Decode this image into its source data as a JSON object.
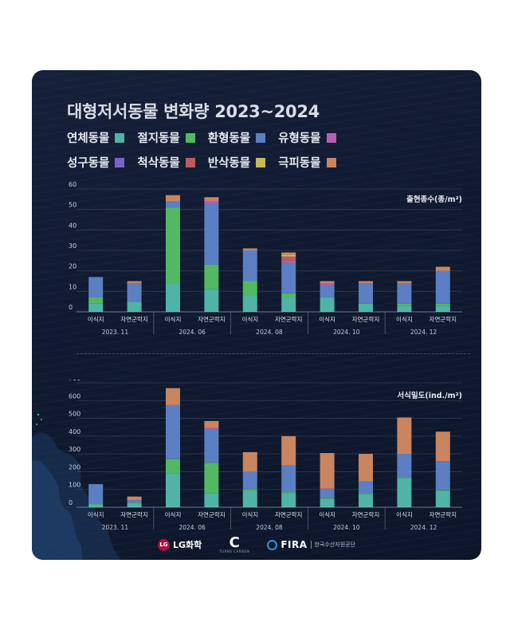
{
  "title": "대형저서동물 변화량 2023~2024",
  "colors": {
    "연체동물": "#4fb3a8",
    "절지동물": "#52b862",
    "환형동물": "#5b7fc2",
    "유형동물": "#b95db7",
    "성구동물": "#7a62c9",
    "척삭동물": "#c05a5e",
    "반삭동물": "#c8b85a",
    "극피동물": "#c98560"
  },
  "legend": [
    {
      "label": "연체동물",
      "color": "#4fb3a8"
    },
    {
      "label": "절지동물",
      "color": "#52b862"
    },
    {
      "label": "환형동물",
      "color": "#5b7fc2"
    },
    {
      "label": "유형동물",
      "color": "#b95db7"
    },
    {
      "label": "성구동물",
      "color": "#7a62c9"
    },
    {
      "label": "척삭동물",
      "color": "#c05a5e"
    },
    {
      "label": "반삭동물",
      "color": "#c8b85a"
    },
    {
      "label": "극피동물",
      "color": "#c98560"
    }
  ],
  "logos": {
    "lg": "LG화학",
    "lg_mark": "LG",
    "c_mark": "C",
    "c_sub": "TURNS CARBON",
    "fira": "FIRA",
    "fira_sub": "한국수산자원공단"
  },
  "chart_data": [
    {
      "type": "bar",
      "stacked": true,
      "title": "",
      "ylabel": "출현종수(종/m²)",
      "ylim": [
        0,
        60
      ],
      "yticks": [
        0,
        10,
        20,
        30,
        40,
        50,
        60
      ],
      "grid": true,
      "categories": [
        "이식지",
        "자연군락지",
        "이식지",
        "자연군락지",
        "이식지",
        "자연군락지",
        "이식지",
        "자연군락지",
        "이식지",
        "자연군락지"
      ],
      "groups": [
        {
          "label": "2023. 11",
          "span": [
            0,
            1
          ]
        },
        {
          "label": "2024. 06",
          "span": [
            2,
            3
          ]
        },
        {
          "label": "2024. 08",
          "span": [
            4,
            5
          ]
        },
        {
          "label": "2024. 10",
          "span": [
            6,
            7
          ]
        },
        {
          "label": "2024. 12",
          "span": [
            8,
            9
          ]
        }
      ],
      "series": [
        {
          "name": "연체동물",
          "values": [
            4,
            5,
            14,
            11,
            8,
            7,
            7,
            4,
            3,
            3
          ]
        },
        {
          "name": "절지동물",
          "values": [
            3,
            0,
            37,
            12,
            7,
            2,
            0,
            0,
            1,
            1
          ]
        },
        {
          "name": "환형동물",
          "values": [
            10,
            9,
            3,
            30,
            15,
            15,
            6,
            10,
            10,
            16
          ]
        },
        {
          "name": "유형동물",
          "values": [
            0,
            0,
            0,
            1,
            0,
            1,
            1,
            0,
            0,
            0
          ]
        },
        {
          "name": "성구동물",
          "values": [
            0,
            0,
            0,
            0,
            0,
            0,
            0,
            0,
            0,
            0
          ]
        },
        {
          "name": "척삭동물",
          "values": [
            0,
            0,
            0,
            0,
            0,
            2,
            0,
            0,
            0,
            0
          ]
        },
        {
          "name": "반삭동물",
          "values": [
            0,
            0,
            0,
            0,
            0,
            1,
            0,
            0,
            0,
            0
          ]
        },
        {
          "name": "극피동물",
          "values": [
            0,
            1,
            3,
            2,
            1,
            1,
            1,
            1,
            1,
            2
          ]
        }
      ]
    },
    {
      "type": "bar",
      "stacked": true,
      "title": "",
      "ylabel": "서식밀도(ind./m²)",
      "ylim": [
        0,
        700
      ],
      "yticks": [
        0,
        100,
        200,
        300,
        400,
        500,
        600,
        700
      ],
      "grid": true,
      "categories": [
        "이식지",
        "자연군락지",
        "이식지",
        "자연군락지",
        "이식지",
        "자연군락지",
        "이식지",
        "자연군락지",
        "이식지",
        "자연군락지"
      ],
      "groups": [
        {
          "label": "2023. 11",
          "span": [
            0,
            1
          ]
        },
        {
          "label": "2024. 06",
          "span": [
            2,
            3
          ]
        },
        {
          "label": "2024. 08",
          "span": [
            4,
            5
          ]
        },
        {
          "label": "2024. 10",
          "span": [
            6,
            7
          ]
        },
        {
          "label": "2024. 12",
          "span": [
            8,
            9
          ]
        }
      ],
      "series": [
        {
          "name": "연체동물",
          "values": [
            15,
            20,
            190,
            80,
            90,
            80,
            45,
            75,
            165,
            90
          ]
        },
        {
          "name": "절지동물",
          "values": [
            5,
            5,
            80,
            170,
            10,
            5,
            5,
            5,
            5,
            5
          ]
        },
        {
          "name": "환형동물",
          "values": [
            110,
            15,
            300,
            190,
            100,
            150,
            50,
            65,
            130,
            160
          ]
        },
        {
          "name": "유형동물",
          "values": [
            0,
            0,
            5,
            5,
            0,
            0,
            5,
            0,
            0,
            5
          ]
        },
        {
          "name": "성구동물",
          "values": [
            0,
            0,
            0,
            0,
            0,
            0,
            0,
            0,
            0,
            0
          ]
        },
        {
          "name": "척삭동물",
          "values": [
            0,
            0,
            0,
            0,
            0,
            0,
            0,
            0,
            0,
            0
          ]
        },
        {
          "name": "반삭동물",
          "values": [
            0,
            0,
            0,
            0,
            0,
            0,
            0,
            0,
            0,
            0
          ]
        },
        {
          "name": "극피동물",
          "values": [
            0,
            20,
            95,
            40,
            110,
            165,
            200,
            155,
            205,
            165
          ]
        }
      ]
    }
  ]
}
